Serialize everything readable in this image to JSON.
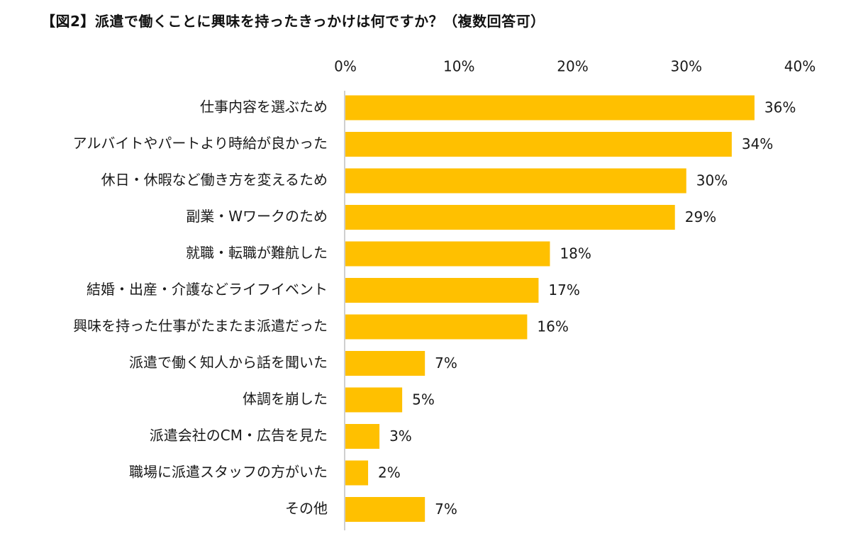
{
  "chart_data": {
    "type": "bar",
    "orientation": "horizontal",
    "title": "【図2】派遣で働くことに興味を持ったきっかけは何ですか？（複数回答可）",
    "categories": [
      "仕事内容を選ぶため",
      "アルバイトやパートより時給が良かった",
      "休日・休暇など働き方を変えるため",
      "副業・Wワークのため",
      "就職・転職が難航した",
      "結婚・出産・介護などライフイベント",
      "興味を持った仕事がたまたま派遣だった",
      "派遣で働く知人から話を聞いた",
      "体調を崩した",
      "派遣会社のCM・広告を見た",
      "職場に派遣スタッフの方がいた",
      "その他"
    ],
    "values": [
      36,
      34,
      30,
      29,
      18,
      17,
      16,
      7,
      5,
      3,
      2,
      7
    ],
    "data_labels": [
      "36%",
      "34%",
      "30%",
      "29%",
      "18%",
      "17%",
      "16%",
      "7%",
      "5%",
      "3%",
      "2%",
      "7%"
    ],
    "x_ticks": [
      0,
      10,
      20,
      30,
      40
    ],
    "x_tick_labels": [
      "0%",
      "10%",
      "20%",
      "30%",
      "40%"
    ],
    "xlim": [
      0,
      40
    ],
    "axis_position": "top",
    "grid": false,
    "legend": "none",
    "bar_color": "#FFC000",
    "xlabel": "",
    "ylabel": ""
  }
}
